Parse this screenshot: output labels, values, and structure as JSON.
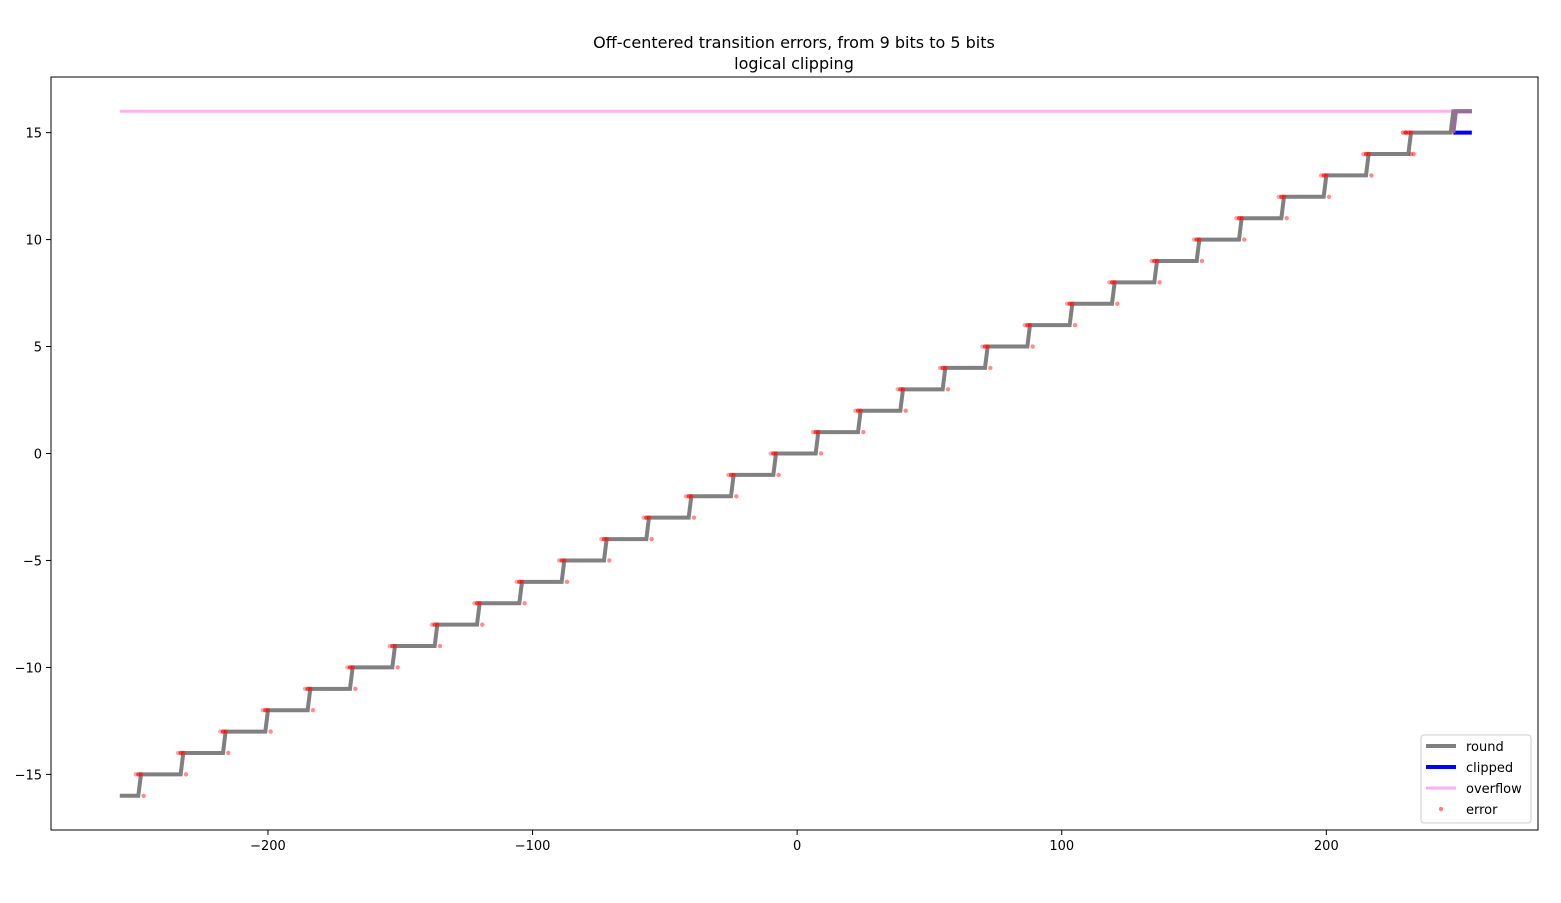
{
  "chart_data": {
    "type": "line",
    "title": "Off-centered transition errors, from 9 bits to 5 bits",
    "subtitle": "logical clipping",
    "xlabel": "",
    "ylabel": "",
    "xlim": [
      -282,
      280
    ],
    "ylim": [
      -17.6,
      17.6
    ],
    "x_ticks": [
      -200,
      -100,
      0,
      100,
      200
    ],
    "x_tick_labels": [
      "−200",
      "−100",
      "0",
      "100",
      "200"
    ],
    "y_ticks": [
      -15,
      -10,
      -5,
      0,
      5,
      10,
      15
    ],
    "y_tick_labels": [
      "−15",
      "−10",
      "−5",
      "0",
      "5",
      "10",
      "15"
    ],
    "grid": false,
    "legend_position": "lower right",
    "series": [
      {
        "name": "round",
        "style": "staircase",
        "color": "#808080",
        "x_start": -256,
        "x_end": 255,
        "transition_offset": 8,
        "level_step": 16,
        "level_min": -16,
        "level_max": 16
      },
      {
        "name": "clipped",
        "color": "#0000ff",
        "x": [
          248,
          255
        ],
        "y": [
          15,
          15
        ]
      },
      {
        "name": "overflow",
        "color": "#ffb0f0",
        "x": [
          -256,
          255
        ],
        "y": [
          16,
          16
        ]
      },
      {
        "name": "error",
        "style": "markers",
        "color": "#ff0000",
        "x_offsets_from_transition": [
          -2,
          -1,
          0,
          1
        ],
        "transitions_note": "red dots at each staircase transition"
      }
    ],
    "legend": [
      {
        "name": "round",
        "color": "#808080",
        "kind": "line-thick"
      },
      {
        "name": "clipped",
        "color": "#0000ff",
        "kind": "line-thick"
      },
      {
        "name": "overflow",
        "color": "#ffb0f0",
        "kind": "line"
      },
      {
        "name": "error",
        "color": "#ff0000",
        "kind": "dot"
      }
    ]
  }
}
